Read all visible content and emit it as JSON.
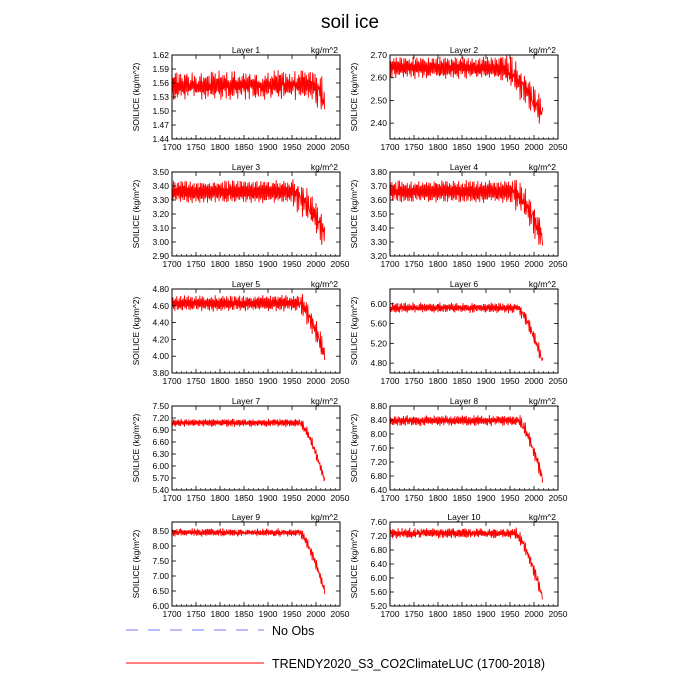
{
  "title": "soil ice",
  "colors": {
    "model_line": "#ff0000",
    "obs_line": "#7777ff",
    "axis": "#000000"
  },
  "legend": {
    "obs_label": "No Obs",
    "model_label": "TRENDY2020_S3_CO2ClimateLUC (1700-2018)"
  },
  "chart_data": [
    {
      "type": "line",
      "title": "Layer 1",
      "units_label": "kg/m^2",
      "ylabel": "SOILICE  (kg/m^2)",
      "xlabel": "",
      "xlim": [
        1700,
        2050
      ],
      "xticks": [
        1700,
        1750,
        1800,
        1850,
        1900,
        1950,
        2000,
        2050
      ],
      "ylim": [
        1.44,
        1.62
      ],
      "yticks": [
        "1.44",
        "1.47",
        "1.50",
        "1.53",
        "1.56",
        "1.59",
        "1.62"
      ],
      "series": [
        {
          "name": "TRENDY2020_S3_CO2ClimateLUC (1700-2018)",
          "x_range": [
            1700,
            2018
          ],
          "center": 1.555,
          "amplitude": 0.022,
          "noise": 0.012,
          "decline_start": 1990,
          "decline": 0.03,
          "seed": 11
        }
      ]
    },
    {
      "type": "line",
      "title": "Layer 2",
      "units_label": "kg/m^2",
      "ylabel": "SOILICE  (kg/m^2)",
      "xlabel": "",
      "xlim": [
        1700,
        2050
      ],
      "xticks": [
        1700,
        1750,
        1800,
        1850,
        1900,
        1950,
        2000,
        2050
      ],
      "ylim": [
        2.33,
        2.7
      ],
      "yticks": [
        "2.40",
        "2.50",
        "2.60",
        "2.70"
      ],
      "series": [
        {
          "name": "TRENDY2020_S3_CO2ClimateLUC (1700-2018)",
          "x_range": [
            1700,
            2018
          ],
          "center": 2.645,
          "amplitude": 0.04,
          "noise": 0.012,
          "decline_start": 1930,
          "decline": 0.21,
          "seed": 22
        }
      ]
    },
    {
      "type": "line",
      "title": "Layer 3",
      "units_label": "kg/m^2",
      "ylabel": "SOILICE  (kg/m^2)",
      "xlabel": "",
      "xlim": [
        1700,
        2050
      ],
      "xticks": [
        1700,
        1750,
        1800,
        1850,
        1900,
        1950,
        2000,
        2050
      ],
      "ylim": [
        2.9,
        3.5
      ],
      "yticks": [
        "2.90",
        "3.00",
        "3.10",
        "3.20",
        "3.30",
        "3.40",
        "3.50"
      ],
      "series": [
        {
          "name": "TRENDY2020_S3_CO2ClimateLUC (1700-2018)",
          "x_range": [
            1700,
            2018
          ],
          "center": 3.36,
          "amplitude": 0.07,
          "noise": 0.015,
          "decline_start": 1950,
          "decline": 0.3,
          "seed": 33
        }
      ]
    },
    {
      "type": "line",
      "title": "Layer 4",
      "units_label": "kg/m^2",
      "ylabel": "SOILICE  (kg/m^2)",
      "xlabel": "",
      "xlim": [
        1700,
        2050
      ],
      "xticks": [
        1700,
        1750,
        1800,
        1850,
        1900,
        1950,
        2000,
        2050
      ],
      "ylim": [
        3.2,
        3.8
      ],
      "yticks": [
        "3.20",
        "3.30",
        "3.40",
        "3.50",
        "3.60",
        "3.70",
        "3.80"
      ],
      "series": [
        {
          "name": "TRENDY2020_S3_CO2ClimateLUC (1700-2018)",
          "x_range": [
            1700,
            2018
          ],
          "center": 3.66,
          "amplitude": 0.07,
          "noise": 0.015,
          "decline_start": 1955,
          "decline": 0.33,
          "seed": 44
        }
      ]
    },
    {
      "type": "line",
      "title": "Layer 5",
      "units_label": "kg/m^2",
      "ylabel": "SOILICE  (kg/m^2)",
      "xlabel": "",
      "xlim": [
        1700,
        2050
      ],
      "xticks": [
        1700,
        1750,
        1800,
        1850,
        1900,
        1950,
        2000,
        2050
      ],
      "ylim": [
        3.8,
        4.8
      ],
      "yticks": [
        "3.80",
        "4.00",
        "4.20",
        "4.40",
        "4.60",
        "4.80"
      ],
      "series": [
        {
          "name": "TRENDY2020_S3_CO2ClimateLUC (1700-2018)",
          "x_range": [
            1700,
            2018
          ],
          "center": 4.63,
          "amplitude": 0.08,
          "noise": 0.02,
          "decline_start": 1965,
          "decline": 0.62,
          "seed": 55
        }
      ]
    },
    {
      "type": "line",
      "title": "Layer 6",
      "units_label": "kg/m^2",
      "ylabel": "SOILICE  (kg/m^2)",
      "xlabel": "",
      "xlim": [
        1700,
        2050
      ],
      "xticks": [
        1700,
        1750,
        1800,
        1850,
        1900,
        1950,
        2000,
        2050
      ],
      "ylim": [
        4.6,
        6.3
      ],
      "yticks": [
        "4.80",
        "5.20",
        "5.60",
        "6.00"
      ],
      "series": [
        {
          "name": "TRENDY2020_S3_CO2ClimateLUC (1700-2018)",
          "x_range": [
            1700,
            2018
          ],
          "center": 5.92,
          "amplitude": 0.08,
          "noise": 0.03,
          "decline_start": 1965,
          "decline": 1.1,
          "seed": 66
        }
      ]
    },
    {
      "type": "line",
      "title": "Layer 7",
      "units_label": "kg/m^2",
      "ylabel": "SOILICE  (kg/m^2)",
      "xlabel": "",
      "xlim": [
        1700,
        2050
      ],
      "xticks": [
        1700,
        1750,
        1800,
        1850,
        1900,
        1950,
        2000,
        2050
      ],
      "ylim": [
        5.4,
        7.5
      ],
      "yticks": [
        "5.40",
        "5.70",
        "6.00",
        "6.30",
        "6.60",
        "6.90",
        "7.20",
        "7.50"
      ],
      "series": [
        {
          "name": "TRENDY2020_S3_CO2ClimateLUC (1700-2018)",
          "x_range": [
            1700,
            2018
          ],
          "center": 7.08,
          "amplitude": 0.08,
          "noise": 0.03,
          "decline_start": 1965,
          "decline": 1.45,
          "seed": 77
        }
      ]
    },
    {
      "type": "line",
      "title": "Layer 8",
      "units_label": "kg/m^2",
      "ylabel": "SOILICE  (kg/m^2)",
      "xlabel": "",
      "xlim": [
        1700,
        2050
      ],
      "xticks": [
        1700,
        1750,
        1800,
        1850,
        1900,
        1950,
        2000,
        2050
      ],
      "ylim": [
        6.4,
        8.8
      ],
      "yticks": [
        "6.40",
        "6.80",
        "7.20",
        "7.60",
        "8.00",
        "8.40",
        "8.80"
      ],
      "series": [
        {
          "name": "TRENDY2020_S3_CO2ClimateLUC (1700-2018)",
          "x_range": [
            1700,
            2018
          ],
          "center": 8.38,
          "amplitude": 0.12,
          "noise": 0.04,
          "decline_start": 1965,
          "decline": 1.65,
          "seed": 88
        }
      ]
    },
    {
      "type": "line",
      "title": "Layer 9",
      "units_label": "kg/m^2",
      "ylabel": "SOILICE  (kg/m^2)",
      "xlabel": "",
      "xlim": [
        1700,
        2050
      ],
      "xticks": [
        1700,
        1750,
        1800,
        1850,
        1900,
        1950,
        2000,
        2050
      ],
      "ylim": [
        6.0,
        8.8
      ],
      "yticks": [
        "6.00",
        "6.50",
        "7.00",
        "7.50",
        "8.00",
        "8.50"
      ],
      "series": [
        {
          "name": "TRENDY2020_S3_CO2ClimateLUC (1700-2018)",
          "x_range": [
            1700,
            2018
          ],
          "center": 8.45,
          "amplitude": 0.1,
          "noise": 0.05,
          "decline_start": 1965,
          "decline": 1.95,
          "seed": 99
        }
      ]
    },
    {
      "type": "line",
      "title": "Layer 10",
      "units_label": "kg/m^2",
      "ylabel": "SOILICE  (kg/m^2)",
      "xlabel": "",
      "xlim": [
        1700,
        2050
      ],
      "xticks": [
        1700,
        1750,
        1800,
        1850,
        1900,
        1950,
        2000,
        2050
      ],
      "ylim": [
        5.2,
        7.6
      ],
      "yticks": [
        "5.20",
        "5.60",
        "6.00",
        "6.40",
        "6.80",
        "7.20",
        "7.60"
      ],
      "series": [
        {
          "name": "TRENDY2020_S3_CO2ClimateLUC (1700-2018)",
          "x_range": [
            1700,
            2018
          ],
          "center": 7.28,
          "amplitude": 0.11,
          "noise": 0.05,
          "decline_start": 1960,
          "decline": 1.85,
          "seed": 101
        }
      ]
    }
  ]
}
